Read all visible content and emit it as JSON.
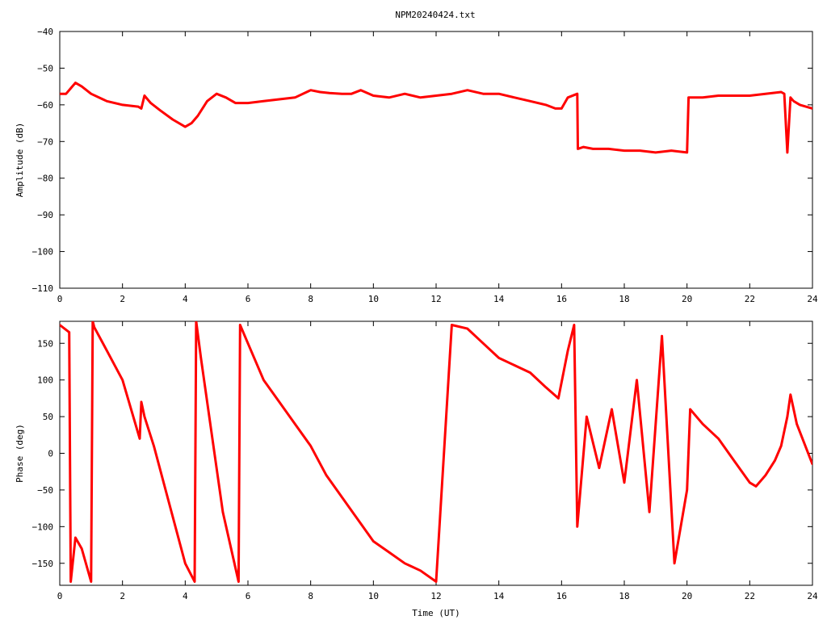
{
  "title": "NPM20240424.txt",
  "chart_data": [
    {
      "type": "line",
      "ylabel": "Amplitude (dB)",
      "xlabel": "",
      "xlim": [
        0,
        24
      ],
      "ylim": [
        -110,
        -40
      ],
      "xticks": [
        0,
        2,
        4,
        6,
        8,
        10,
        12,
        14,
        16,
        18,
        20,
        22,
        24
      ],
      "yticks": [
        -40,
        -50,
        -60,
        -70,
        -80,
        -90,
        -100,
        -110
      ],
      "xtick_labels": [
        "0",
        "2",
        "4",
        "6",
        "8",
        "10",
        "12",
        "14",
        "16",
        "18",
        "20",
        "22",
        "24"
      ],
      "ytick_labels": [
        "−40",
        "−50",
        "−60",
        "−70",
        "−80",
        "−90",
        "−100",
        "−110"
      ],
      "grid": false,
      "color": "#ff0000",
      "series": [
        {
          "x": [
            0,
            0.2,
            0.4,
            0.5,
            0.7,
            1.0,
            1.5,
            2.0,
            2.5,
            2.6,
            2.7,
            2.9,
            3.2,
            3.6,
            4.0,
            4.2,
            4.4,
            4.7,
            5.0,
            5.3,
            5.6,
            6.0,
            6.5,
            7.0,
            7.5,
            8.0,
            8.3,
            8.6,
            9.0,
            9.3,
            9.6,
            10.0,
            10.5,
            11.0,
            11.5,
            12.0,
            12.5,
            13.0,
            13.5,
            14.0,
            14.5,
            15.0,
            15.5,
            15.8,
            16.0,
            16.2,
            16.5,
            16.52,
            16.7,
            17.0,
            17.5,
            18.0,
            18.5,
            19.0,
            19.5,
            20.0,
            20.05,
            20.1,
            20.5,
            21.0,
            21.5,
            22.0,
            22.5,
            23.0,
            23.1,
            23.2,
            23.3,
            23.4,
            23.6,
            24.0
          ],
          "y": [
            -57,
            -57,
            -55,
            -54,
            -55,
            -57,
            -59,
            -60,
            -60.5,
            -61,
            -57.5,
            -59.5,
            -61.5,
            -64,
            -66,
            -65,
            -63,
            -59,
            -57,
            -58,
            -59.5,
            -59.5,
            -59,
            -58.5,
            -58,
            -56,
            -56.5,
            -56.8,
            -57,
            -57,
            -56,
            -57.5,
            -58,
            -57,
            -58,
            -57.5,
            -57,
            -56,
            -57,
            -57,
            -58,
            -59,
            -60,
            -61,
            -61,
            -58,
            -57,
            -72,
            -71.5,
            -72,
            -72,
            -72.5,
            -72.5,
            -73,
            -72.5,
            -73,
            -58,
            -58,
            -58,
            -57.5,
            -57.5,
            -57.5,
            -57,
            -56.5,
            -57,
            -73,
            -58,
            -59,
            -60,
            -61
          ]
        }
      ]
    },
    {
      "type": "line",
      "ylabel": "Phase (deg)",
      "xlabel": "Time (UT)",
      "xlim": [
        0,
        24
      ],
      "ylim": [
        -180,
        180
      ],
      "xticks": [
        0,
        2,
        4,
        6,
        8,
        10,
        12,
        14,
        16,
        18,
        20,
        22,
        24
      ],
      "yticks": [
        150,
        100,
        50,
        0,
        -50,
        -100,
        -150
      ],
      "xtick_labels": [
        "0",
        "2",
        "4",
        "6",
        "8",
        "10",
        "12",
        "14",
        "16",
        "18",
        "20",
        "22",
        "24"
      ],
      "ytick_labels": [
        "150",
        "100",
        "50",
        "0",
        "−50",
        "−100",
        "−150"
      ],
      "grid": false,
      "color": "#ff0000",
      "series": [
        {
          "x": [
            0,
            0.3,
            0.35,
            0.5,
            0.7,
            1.0,
            1.05,
            1.1,
            1.5,
            2.0,
            2.55,
            2.6,
            2.7,
            3.0,
            3.5,
            4.0,
            4.3,
            4.35,
            4.5,
            4.8,
            5.2,
            5.7,
            5.75,
            6.0,
            6.5,
            7.0,
            7.5,
            8.0,
            8.5,
            9.0,
            9.5,
            10.0,
            10.5,
            11.0,
            11.5,
            12.0,
            12.5,
            13.0,
            13.5,
            14.0,
            14.5,
            15.0,
            15.5,
            15.9,
            16.2,
            16.4,
            16.5,
            16.8,
            17.2,
            17.6,
            18.0,
            18.4,
            18.8,
            19.2,
            19.6,
            20.0,
            20.1,
            20.5,
            21.0,
            21.5,
            22.0,
            22.2,
            22.5,
            22.8,
            23.0,
            23.2,
            23.3,
            23.5,
            24.0
          ],
          "y": [
            175,
            165,
            -175,
            -115,
            -130,
            -175,
            180,
            172,
            140,
            100,
            20,
            70,
            50,
            10,
            -70,
            -150,
            -175,
            180,
            130,
            40,
            -80,
            -175,
            175,
            150,
            100,
            70,
            40,
            10,
            -30,
            -60,
            -90,
            -120,
            -135,
            -150,
            -160,
            -175,
            175,
            170,
            150,
            130,
            120,
            110,
            90,
            75,
            140,
            175,
            -100,
            50,
            -20,
            60,
            -40,
            100,
            -80,
            160,
            -150,
            -50,
            60,
            40,
            20,
            -10,
            -40,
            -45,
            -30,
            -10,
            10,
            50,
            80,
            40,
            -15
          ]
        }
      ]
    }
  ]
}
